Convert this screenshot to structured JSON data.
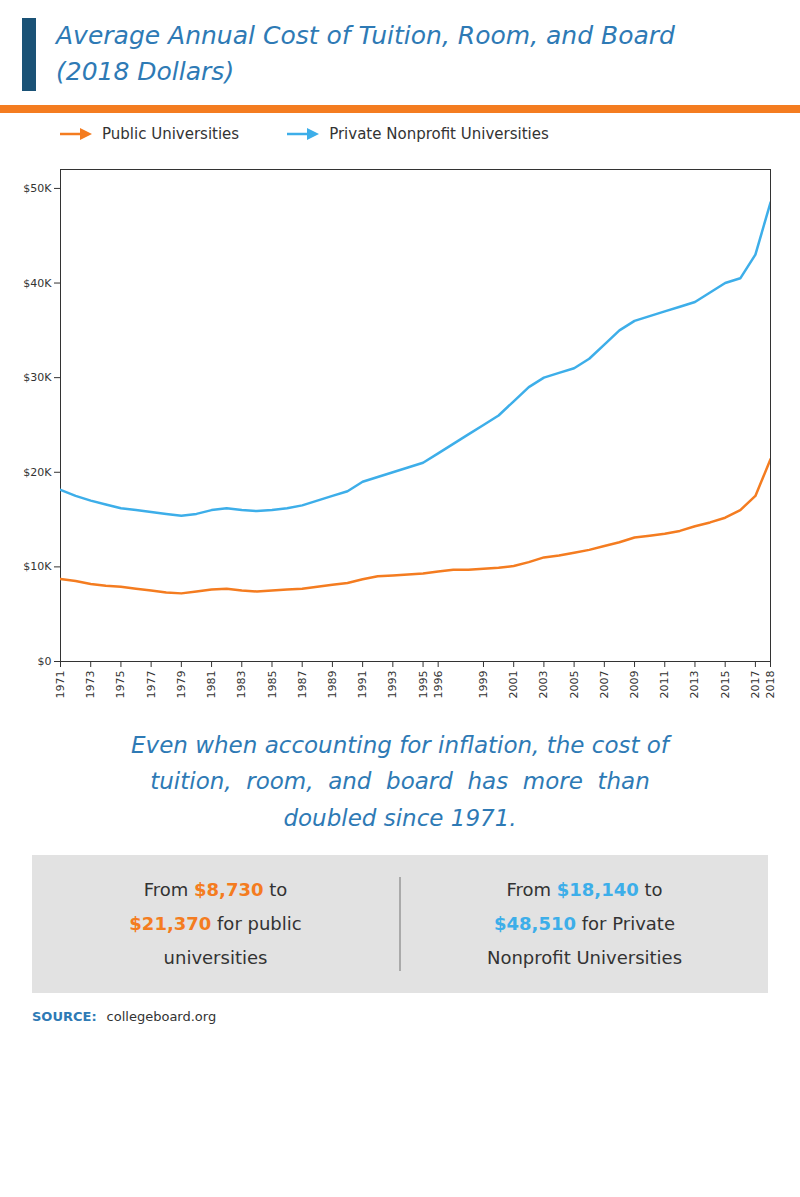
{
  "chart_data": {
    "type": "line",
    "title": "Average Annual Cost of Tuition, Room, and Board",
    "subtitle": "(2018 Dollars)",
    "x": [
      1971,
      1972,
      1973,
      1974,
      1975,
      1976,
      1977,
      1978,
      1979,
      1980,
      1981,
      1982,
      1983,
      1984,
      1985,
      1986,
      1987,
      1988,
      1989,
      1990,
      1991,
      1992,
      1993,
      1994,
      1995,
      1996,
      1997,
      1998,
      1999,
      2000,
      2001,
      2002,
      2003,
      2004,
      2005,
      2006,
      2007,
      2008,
      2009,
      2010,
      2011,
      2012,
      2013,
      2014,
      2015,
      2016,
      2017,
      2018
    ],
    "series": [
      {
        "name": "Public Universities",
        "color": "#f47c20",
        "values": [
          8730,
          8500,
          8200,
          8000,
          7900,
          7700,
          7500,
          7300,
          7200,
          7400,
          7600,
          7700,
          7500,
          7400,
          7500,
          7600,
          7700,
          7900,
          8100,
          8300,
          8700,
          9000,
          9100,
          9200,
          9300,
          9500,
          9700,
          9700,
          9800,
          9900,
          10100,
          10500,
          11000,
          11200,
          11500,
          11800,
          12200,
          12600,
          13100,
          13300,
          13500,
          13800,
          14300,
          14700,
          15200,
          16000,
          17500,
          21370
        ]
      },
      {
        "name": "Private Nonprofit Universities",
        "color": "#3daee9",
        "values": [
          18140,
          17500,
          17000,
          16600,
          16200,
          16000,
          15800,
          15600,
          15400,
          15600,
          16000,
          16200,
          16000,
          15900,
          16000,
          16200,
          16500,
          17000,
          17500,
          18000,
          19000,
          19500,
          20000,
          20500,
          21000,
          22000,
          23000,
          24000,
          25000,
          26000,
          27500,
          29000,
          30000,
          30500,
          31000,
          32000,
          33500,
          35000,
          36000,
          36500,
          37000,
          37500,
          38000,
          39000,
          40000,
          40500,
          43000,
          48510
        ]
      }
    ],
    "xlim": [
      1971,
      2018
    ],
    "xticks": [
      1971,
      1973,
      1975,
      1977,
      1979,
      1981,
      1983,
      1985,
      1987,
      1989,
      1991,
      1993,
      1995,
      1996,
      1999,
      2001,
      2003,
      2005,
      2007,
      2009,
      2011,
      2013,
      2015,
      2017,
      2018
    ],
    "ylim": [
      0,
      52000
    ],
    "yticks": [
      {
        "value": 0,
        "label": "$0"
      },
      {
        "value": 10000,
        "label": "$10K"
      },
      {
        "value": 20000,
        "label": "$20K"
      },
      {
        "value": 30000,
        "label": "$30K"
      },
      {
        "value": 40000,
        "label": "$40K"
      },
      {
        "value": 50000,
        "label": "$50K"
      }
    ],
    "grid": false,
    "legend": "top",
    "annotations": [
      "Even when accounting for inflation, the cost of\ntuition,  room,  and  board  has  more  than\ndoubled since 1971.",
      "From $8,730 to\n$21,370 for public\nuniversities",
      "From $18,140 to\n$48,510 for Private\nNonprofit Universities",
      "SOURCE:",
      "collegeboard.org"
    ]
  }
}
